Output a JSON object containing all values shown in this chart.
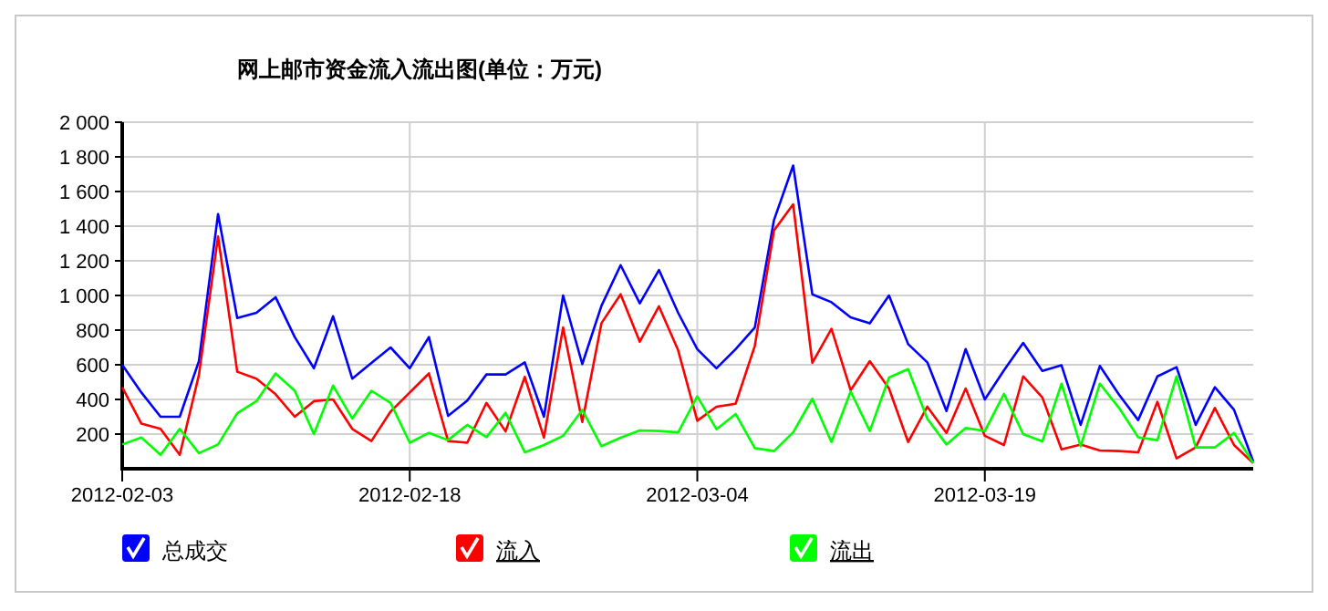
{
  "chart_data": {
    "type": "line",
    "title": "网上邮市资金流入流出图(单位：万元)",
    "x": [
      "2012-02-03",
      "2012-02-04",
      "2012-02-05",
      "2012-02-06",
      "2012-02-07",
      "2012-02-08",
      "2012-02-09",
      "2012-02-10",
      "2012-02-11",
      "2012-02-12",
      "2012-02-13",
      "2012-02-14",
      "2012-02-15",
      "2012-02-16",
      "2012-02-17",
      "2012-02-18",
      "2012-02-19",
      "2012-02-20",
      "2012-02-21",
      "2012-02-22",
      "2012-02-23",
      "2012-02-24",
      "2012-02-25",
      "2012-02-26",
      "2012-02-27",
      "2012-02-28",
      "2012-02-29",
      "2012-03-01",
      "2012-03-02",
      "2012-03-03",
      "2012-03-04",
      "2012-03-05",
      "2012-03-06",
      "2012-03-07",
      "2012-03-08",
      "2012-03-09",
      "2012-03-10",
      "2012-03-11",
      "2012-03-12",
      "2012-03-13",
      "2012-03-14",
      "2012-03-15",
      "2012-03-16",
      "2012-03-17",
      "2012-03-18",
      "2012-03-19",
      "2012-03-20",
      "2012-03-21",
      "2012-03-22",
      "2012-03-23",
      "2012-03-24",
      "2012-03-25",
      "2012-03-26",
      "2012-03-27",
      "2012-03-28",
      "2012-03-29",
      "2012-03-30",
      "2012-03-31",
      "2012-04-01",
      "2012-04-02"
    ],
    "series": [
      {
        "name": "总成交",
        "color": "#0000ff",
        "values": [
          600,
          440,
          300,
          300,
          620,
          1470,
          870,
          900,
          990,
          760,
          580,
          880,
          520,
          610,
          700,
          580,
          760,
          305,
          393,
          544,
          544,
          614,
          300,
          1000,
          604,
          940,
          1175,
          955,
          1147,
          900,
          690,
          580,
          690,
          815,
          1435,
          1750,
          1007,
          961,
          874,
          839,
          1000,
          719,
          614,
          333,
          691,
          400,
          568,
          726,
          565,
          597,
          253,
          593,
          428,
          281,
          533,
          586,
          253,
          470,
          340,
          42
        ]
      },
      {
        "name": "流入",
        "color": "#ff0000",
        "values": [
          470,
          260,
          230,
          80,
          540,
          1340,
          560,
          520,
          430,
          300,
          390,
          400,
          230,
          160,
          330,
          440,
          550,
          160,
          150,
          380,
          215,
          530,
          180,
          815,
          270,
          840,
          1007,
          733,
          937,
          684,
          277,
          358,
          375,
          709,
          1375,
          1526,
          611,
          807,
          453,
          621,
          463,
          154,
          358,
          207,
          463,
          190,
          137,
          533,
          411,
          112,
          140,
          105,
          102,
          95,
          386,
          60,
          123,
          351,
          137,
          32
        ]
      },
      {
        "name": "流出",
        "color": "#00ff00",
        "values": [
          140,
          180,
          80,
          230,
          90,
          140,
          320,
          390,
          550,
          450,
          200,
          480,
          290,
          450,
          380,
          150,
          207,
          165,
          253,
          182,
          323,
          95,
          137,
          190,
          340,
          130,
          179,
          221,
          218,
          210,
          418,
          228,
          316,
          119,
          102,
          210,
          404,
          154,
          446,
          218,
          526,
          575,
          288,
          140,
          235,
          218,
          432,
          200,
          158,
          491,
          130,
          491,
          351,
          182,
          165,
          533,
          123,
          123,
          207,
          32
        ]
      }
    ],
    "xlim": [
      "2012-02-03",
      "2012-04-02"
    ],
    "xticks": [
      "2012-02-03",
      "2012-02-18",
      "2012-03-04",
      "2012-03-19"
    ],
    "ylim": [
      0,
      2000
    ],
    "yticks": [
      200,
      400,
      600,
      800,
      {
        "value": 1000,
        "label": "1 000"
      },
      {
        "value": 1200,
        "label": "1 200"
      },
      {
        "value": 1400,
        "label": "1 400"
      },
      {
        "value": 1600,
        "label": "1 600"
      },
      {
        "value": 1800,
        "label": "1 800"
      },
      {
        "value": 2000,
        "label": "2 000"
      }
    ],
    "grid": true,
    "legend": "bottom",
    "marker": "none",
    "line_style": "solid"
  }
}
